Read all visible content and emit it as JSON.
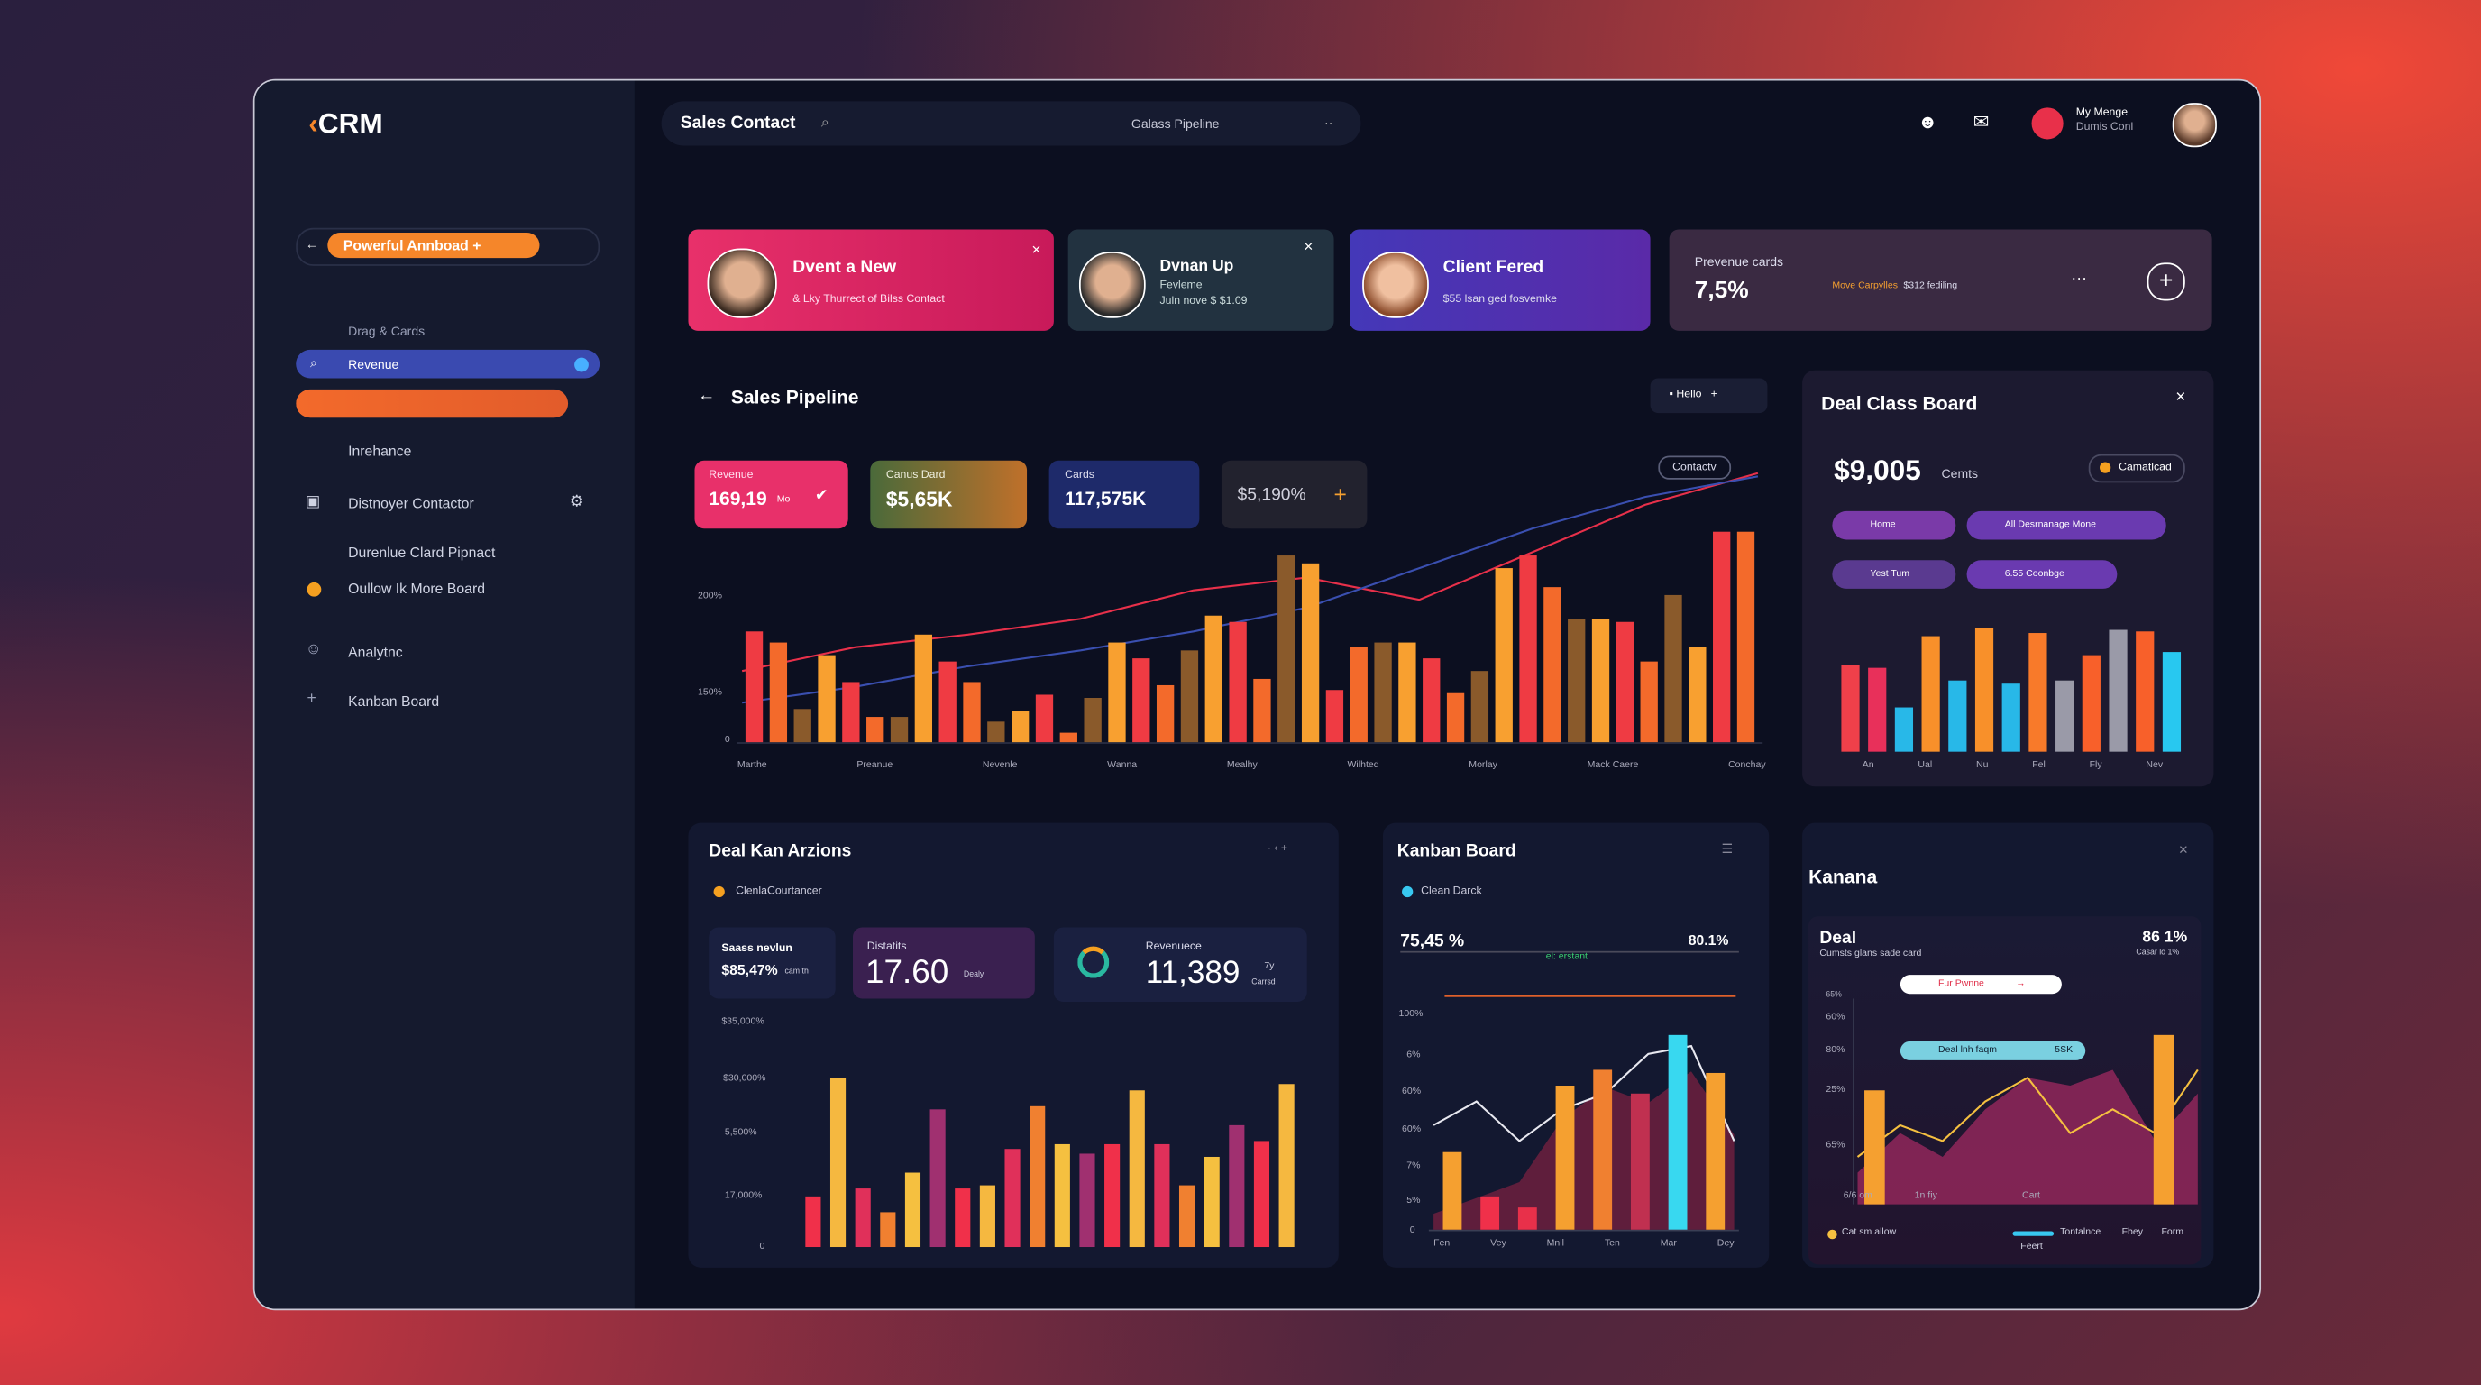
{
  "sidebar": {
    "logo": "CRM",
    "button": "Powerful Annboad",
    "items": [
      "Drag & Cards",
      "Revenue",
      "Inrehance",
      "Distnoyer Contactor",
      "Durenlue Clard Pipnact",
      "Oullow Ik More Board",
      "Analytnc",
      "Kanban Board"
    ]
  },
  "topbar": {
    "title": "Sales Contact",
    "search": "Galass Pipeline",
    "user_name": "My Menge",
    "user_role": "Dumis Conl"
  },
  "cards": [
    {
      "title": "Dvent a New",
      "sub": "& Lky Thurrect of Bilss Contact"
    },
    {
      "title": "Dvnan Up",
      "sub": "Fevleme",
      "sub2": "Juln nove $ $1.09"
    },
    {
      "title": "Client Fered",
      "sub": "$55 lsan ged fosvemke"
    },
    {
      "title": "Prevenue cards",
      "value": "7,5%",
      "tag": "Move Carpylles",
      "note": "$312 fediling"
    }
  ],
  "pipeline": {
    "title": "Sales Pipeline",
    "button": "Hello",
    "stats": [
      {
        "label": "Revenue",
        "value": "169,19",
        "unit": "Mo"
      },
      {
        "label": "Canus Dard",
        "value": "$5,65K"
      },
      {
        "label": "Cards",
        "value": "117,575K"
      },
      {
        "value": "$5,190%"
      }
    ],
    "legend": "Contactv",
    "yaxis": [
      "200%",
      "150%",
      "0"
    ],
    "xaxis": [
      "Marthe",
      "Preanue",
      "Nevenle",
      "Wanna",
      "Mealhy",
      "Wilhted",
      "Morlay",
      "Mack Caere",
      "Conchay"
    ],
    "chart": {
      "type": "bar",
      "ylim": [
        0,
        180
      ],
      "colors": [
        "#ef3b43",
        "#f36a2b",
        "#8a5a2b",
        "#f8a030"
      ],
      "values": [
        70,
        63,
        21,
        55,
        38,
        16,
        16,
        68,
        51,
        38,
        13,
        20,
        30,
        6,
        28,
        63,
        53,
        36,
        58,
        80,
        76,
        40,
        118,
        113,
        33,
        60,
        63,
        63,
        53,
        31,
        45,
        110,
        118,
        98,
        78,
        78,
        76,
        51,
        93,
        60,
        133,
        133
      ],
      "lines": [
        {
          "color": "#e8304a",
          "values": [
            45,
            60,
            68,
            78,
            96,
            104,
            90,
            120,
            150,
            170
          ]
        },
        {
          "color": "#3a4fb0",
          "values": [
            25,
            35,
            48,
            58,
            70,
            85,
            110,
            135,
            155,
            168
          ]
        }
      ]
    }
  },
  "dealclass": {
    "title": "Deal Class Board",
    "value": "$9,005",
    "unit": "Cemts",
    "badge": "Camatlcad",
    "chips": [
      "Home",
      "All Desrnanage Mone",
      "Yest Tum",
      "6.55 Coonbge"
    ],
    "xaxis": [
      "An",
      "Ual",
      "Nu",
      "Fel",
      "Fly",
      "Nev"
    ],
    "chart": {
      "type": "bar",
      "ylim": [
        0,
        85
      ],
      "colors": [
        "#f0404a",
        "#e8305a",
        "#28b8e8",
        "#f8902a",
        "#28b8e8",
        "#f8902a",
        "#28b8e8",
        "#f87a2a",
        "#9a9aa8",
        "#f8602a",
        "#9a9aa8",
        "#f8602a",
        "#28c8f0"
      ],
      "values": [
        55,
        53,
        28,
        73,
        45,
        78,
        43,
        75,
        45,
        61,
        77,
        76,
        63
      ]
    }
  },
  "dealkan": {
    "title": "Deal Kan Arzions",
    "legend": "ClenlaCourtancer",
    "stats": [
      {
        "label": "Saass nevlun",
        "value": "$85,47%",
        "unit": "cam th"
      },
      {
        "label": "Distatits",
        "value": "17.60",
        "unit": "Dealy"
      },
      {
        "label": "Revenuece",
        "value": "11,389",
        "unit_top": "7y",
        "unit": "Carrsd"
      }
    ],
    "yaxis": [
      "$35,000%",
      "$30,000%",
      "5,500%",
      "17,000%",
      "0"
    ],
    "chart": {
      "type": "bar",
      "ylim": [
        0,
        110
      ],
      "colors": [
        "#f0304a",
        "#f5b840",
        "#e0305a",
        "#f08030",
        "#f5c040",
        "#a03070"
      ],
      "values": [
        32,
        107,
        37,
        22,
        47,
        87,
        37,
        39,
        62,
        89,
        65,
        59,
        65,
        99,
        65,
        39,
        57,
        77,
        67,
        103
      ]
    }
  },
  "kanban": {
    "title": "Kanban Board",
    "legend": "Clean Darck",
    "left": "75,45 %",
    "right": "80.1%",
    "mid": "el: erstant",
    "yaxis": [
      "100%",
      "6%",
      "60%",
      "60%",
      "7%",
      "5%",
      "0"
    ],
    "xaxis": [
      "Fen",
      "Vey",
      "Mnll",
      "Ten",
      "Mar",
      "Dey"
    ],
    "chart": {
      "type": "bar",
      "ylim": [
        0,
        130
      ],
      "colors": [
        "#f5a030",
        "#f0304a",
        "#e8304a",
        "#f5a030",
        "#f08030",
        "#c03050",
        "#38d8f0",
        "#f5a030"
      ],
      "values": [
        49,
        21,
        14,
        91,
        101,
        86,
        123,
        99
      ],
      "lines": [
        {
          "color": "#7a2040",
          "fill": true,
          "values": [
            10,
            20,
            30,
            70,
            90,
            80,
            100,
            60
          ]
        },
        {
          "color": "#e8e8f0",
          "values": [
            66,
            81,
            56,
            76,
            86,
            111,
            116,
            56
          ]
        }
      ]
    }
  },
  "kanana": {
    "title": "Kanana",
    "deal": "Deal",
    "sub": "Cumsts glans sade card",
    "pct": "86 1%",
    "pct_sub": "Casar lo 1%",
    "pill1": "Fur Pwnne",
    "pill2": "Deal lnh faqm",
    "pill2_val": "5SK",
    "yaxis": [
      "65%",
      "60%",
      "80%",
      "25%",
      "65%"
    ],
    "xaxis": [
      "6/6 om",
      "1n fiy",
      "Cart"
    ],
    "legend": [
      "Cat sm allow",
      "Tontalnce",
      "Fbey",
      "Form",
      "Feert"
    ],
    "chart": {
      "type": "bar",
      "ylim": [
        0,
        120
      ],
      "colors": [
        "#f5a030",
        "#f5a030"
      ],
      "values": [
        72,
        107
      ],
      "lines": [
        {
          "color": "#a02a60",
          "fill": true,
          "values": [
            20,
            45,
            30,
            60,
            80,
            75,
            85,
            40,
            70
          ]
        },
        {
          "color": "#f5c040",
          "values": [
            30,
            50,
            40,
            65,
            80,
            45,
            60,
            45,
            85
          ]
        }
      ]
    }
  }
}
